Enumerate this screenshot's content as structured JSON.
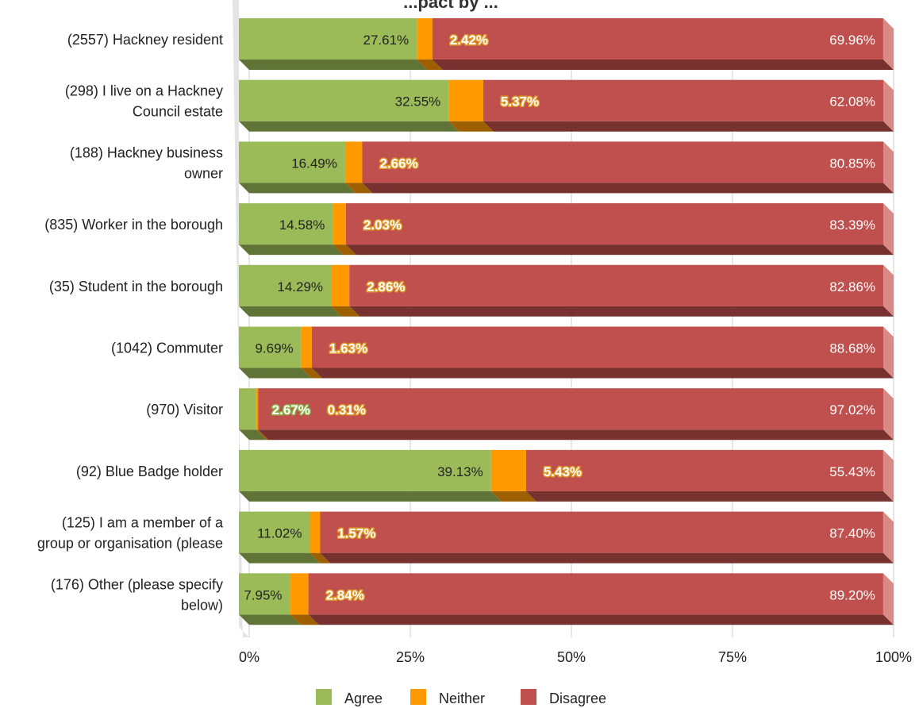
{
  "chart_data": {
    "type": "bar",
    "orientation": "horizontal",
    "stacked": true,
    "title": "...pact by ...",
    "categories": [
      [
        "(2557) Hackney resident"
      ],
      [
        "(298) I live on a Hackney",
        "Council estate"
      ],
      [
        "(188) Hackney business",
        "owner"
      ],
      [
        "(835) Worker in the borough"
      ],
      [
        "(35) Student in the borough"
      ],
      [
        "(1042) Commuter"
      ],
      [
        "(970) Visitor"
      ],
      [
        "(92) Blue Badge holder"
      ],
      [
        "(125) I am a member of a",
        "group or organisation (please"
      ],
      [
        "(176) Other (please specify",
        "below)"
      ]
    ],
    "series": [
      {
        "name": "Agree",
        "color": "#9bbb59",
        "values": [
          27.61,
          32.55,
          16.49,
          14.58,
          14.29,
          9.69,
          2.67,
          39.13,
          11.02,
          7.95
        ],
        "labels": [
          "27.61%",
          "32.55%",
          "16.49%",
          "14.58%",
          "14.29%",
          "9.69%",
          "2.67%",
          "39.13%",
          "11.02%",
          "7.95%"
        ]
      },
      {
        "name": "Neither",
        "color": "#ff9900",
        "values": [
          2.42,
          5.37,
          2.66,
          2.03,
          2.86,
          1.63,
          0.31,
          5.43,
          1.57,
          2.84
        ],
        "labels": [
          "2.42%",
          "5.37%",
          "2.66%",
          "2.03%",
          "2.86%",
          "1.63%",
          "0.31%",
          "5.43%",
          "1.57%",
          "2.84%"
        ]
      },
      {
        "name": "Disagree",
        "color": "#c0504d",
        "values": [
          69.96,
          62.08,
          80.85,
          83.39,
          82.86,
          88.68,
          97.02,
          55.43,
          87.4,
          89.2
        ],
        "labels": [
          "69.96%",
          "62.08%",
          "80.85%",
          "83.39%",
          "82.86%",
          "88.68%",
          "97.02%",
          "55.43%",
          "87.40%",
          "89.20%"
        ]
      }
    ],
    "xlim": [
      0,
      100
    ],
    "xticks": [
      0,
      25,
      50,
      75,
      100
    ],
    "xtick_labels": [
      "0%",
      "25%",
      "50%",
      "75%",
      "100%"
    ],
    "grid": true,
    "legend_position": "bottom",
    "three_d": true
  }
}
